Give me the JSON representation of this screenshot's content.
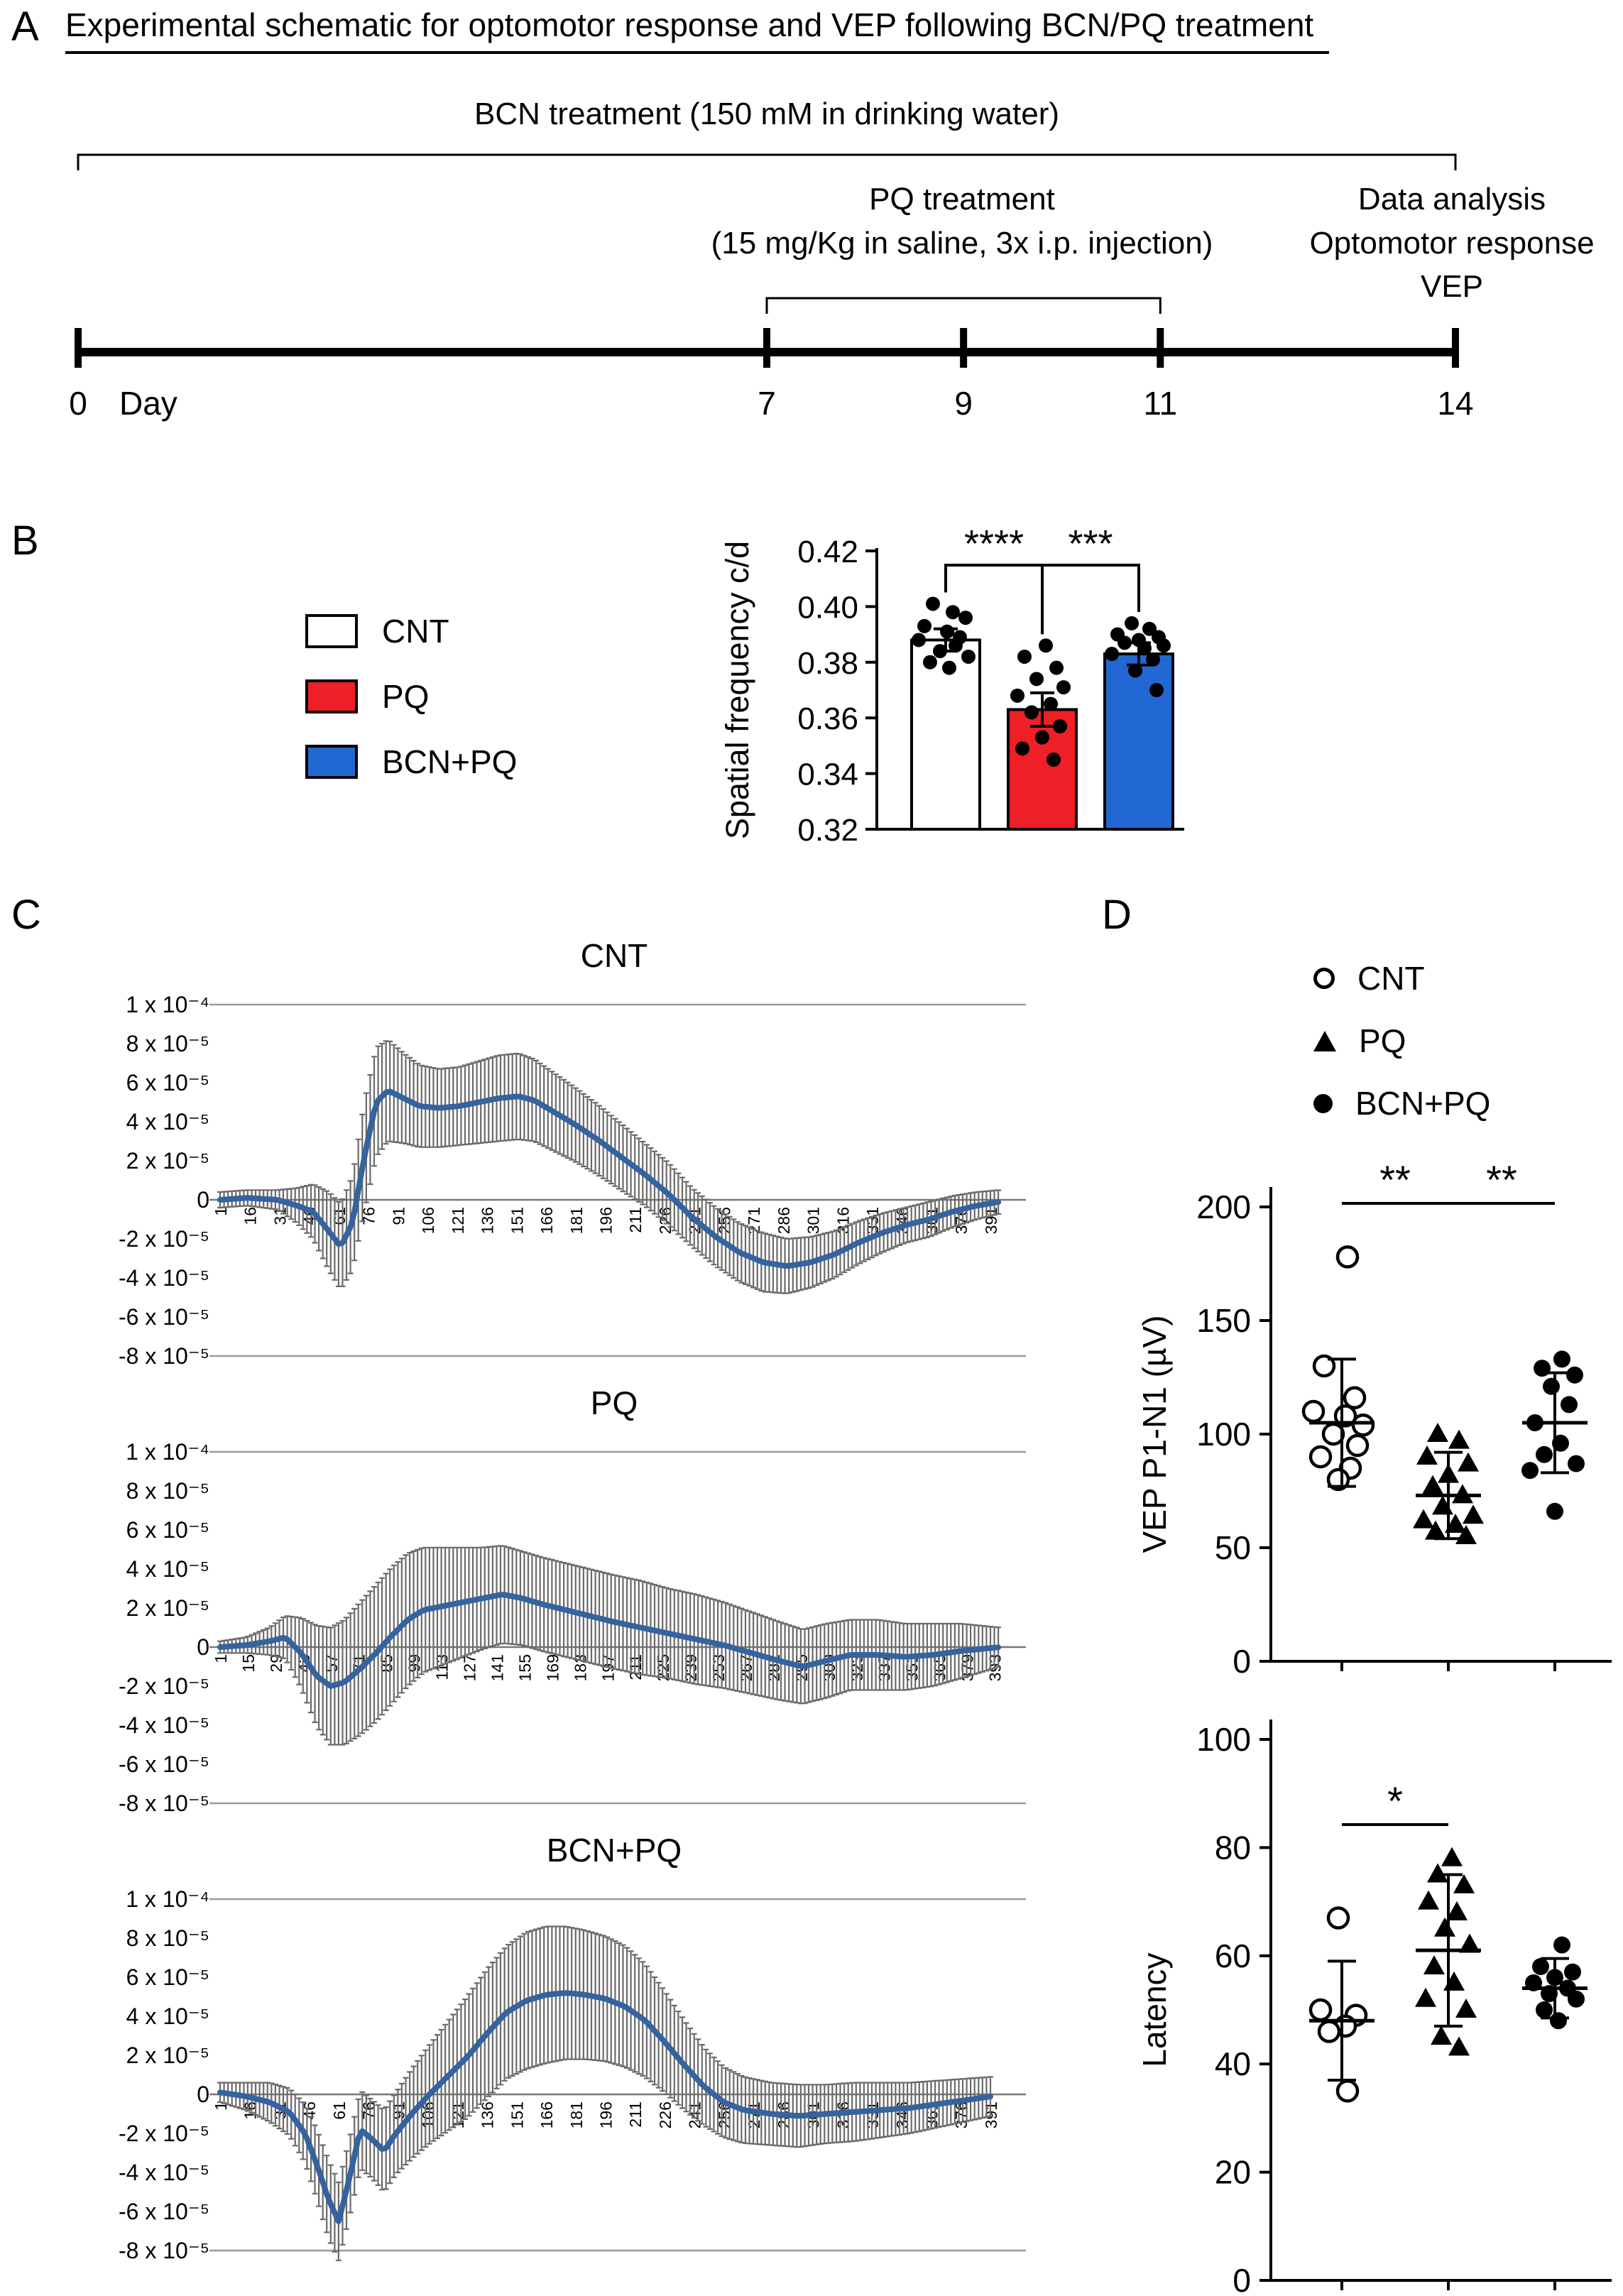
{
  "panel_a": {
    "label": "A",
    "title": "Experimental schematic for optomotor response and VEP following BCN/PQ treatment",
    "bcn_bracket_label": "BCN treatment (150 mM in drinking water)",
    "pq_bracket_label_line1": "PQ treatment",
    "pq_bracket_label_line2": "(15 mg/Kg in saline, 3x i.p. injection)",
    "analysis_label_line1": "Data analysis",
    "analysis_label_line2": "Optomotor response",
    "analysis_label_line3": "VEP",
    "timeline": {
      "day_axis_label": "Day",
      "day_ticks": [
        "0",
        "7",
        "9",
        "11",
        "14"
      ],
      "day_values": [
        0,
        7,
        9,
        11,
        14
      ],
      "start_day": 0,
      "end_day": 14,
      "pq_start_day": 7,
      "pq_end_day": 11
    }
  },
  "panel_b": {
    "label": "B",
    "legend": [
      {
        "label": "CNT",
        "color": "#ffffff"
      },
      {
        "label": "PQ",
        "color": "#ee1f26"
      },
      {
        "label": "BCN+PQ",
        "color": "#2268d3"
      }
    ]
  },
  "panel_c": {
    "label": "C"
  },
  "panel_d": {
    "label": "D",
    "legend": [
      {
        "label": "CNT",
        "marker": "open-circle"
      },
      {
        "label": "PQ",
        "marker": "filled-triangle"
      },
      {
        "label": "BCN+PQ",
        "marker": "filled-circle"
      }
    ]
  },
  "chart_data": [
    {
      "id": "spatial-frequency-bar",
      "type": "bar",
      "ylabel": "Spatial frequency c/d",
      "ylim": [
        0.32,
        0.42
      ],
      "yticks": [
        0.32,
        0.34,
        0.36,
        0.38,
        0.4,
        0.42
      ],
      "categories": [
        "CNT",
        "PQ",
        "BCN+PQ"
      ],
      "values": [
        0.388,
        0.363,
        0.383
      ],
      "errors": [
        0.004,
        0.006,
        0.004
      ],
      "bar_colors": [
        "#ffffff",
        "#ee1f26",
        "#2268d3"
      ],
      "points": [
        [
          0.401,
          0.398,
          0.396,
          0.393,
          0.391,
          0.389,
          0.388,
          0.386,
          0.384,
          0.382,
          0.38,
          0.378
        ],
        [
          0.386,
          0.382,
          0.378,
          0.374,
          0.371,
          0.368,
          0.365,
          0.362,
          0.357,
          0.353,
          0.349,
          0.345
        ],
        [
          0.394,
          0.392,
          0.39,
          0.389,
          0.388,
          0.387,
          0.386,
          0.385,
          0.383,
          0.381,
          0.377,
          0.37
        ]
      ],
      "point_jitter": [
        [
          -18,
          10,
          28,
          -30,
          2,
          20,
          -38,
          14,
          -8,
          32,
          -22,
          5
        ],
        [
          5,
          -25,
          20,
          -8,
          30,
          -35,
          12,
          -15,
          25,
          0,
          -28,
          16
        ],
        [
          -10,
          15,
          -30,
          28,
          0,
          -20,
          35,
          8,
          -38,
          20,
          -5,
          25
        ]
      ],
      "significance": [
        {
          "from": 0,
          "to": 1,
          "label": "****"
        },
        {
          "from": 1,
          "to": 2,
          "label": "***"
        }
      ]
    },
    {
      "id": "vep-trace-cnt",
      "type": "line",
      "title": "CNT",
      "line_color": "#35639f",
      "error_color": "#6a6a6a",
      "grid_color": "#9a9a9a",
      "y_unit": "1e-5 V",
      "ytick_values": [
        10,
        8,
        6,
        4,
        2,
        0,
        -2,
        -4,
        -6,
        -8
      ],
      "ytick_labels": [
        "1 x 10⁻⁴",
        "8 x 10⁻⁵",
        "6 x 10⁻⁵",
        "4 x 10⁻⁵",
        "2 x 10⁻⁵",
        "0",
        "-2 x 10⁻⁵",
        "-4 x 10⁻⁵",
        "-6 x 10⁻⁵",
        "-8 x 10⁻⁵"
      ],
      "xticks": [
        1,
        16,
        31,
        46,
        61,
        76,
        91,
        106,
        121,
        136,
        151,
        166,
        181,
        196,
        211,
        226,
        241,
        256,
        271,
        286,
        301,
        316,
        331,
        346,
        361,
        376,
        391
      ],
      "series": [
        [
          1,
          0,
          0.4
        ],
        [
          15,
          0.1,
          0.4
        ],
        [
          30,
          0,
          0.5
        ],
        [
          40,
          -0.3,
          0.9
        ],
        [
          48,
          -0.6,
          1.4
        ],
        [
          56,
          -1.6,
          2.0
        ],
        [
          62,
          -2.4,
          2.2
        ],
        [
          68,
          -1.2,
          2.4
        ],
        [
          74,
          2.2,
          2.8
        ],
        [
          80,
          5.0,
          2.8
        ],
        [
          86,
          5.6,
          2.6
        ],
        [
          94,
          5.2,
          2.3
        ],
        [
          102,
          4.8,
          2.1
        ],
        [
          112,
          4.7,
          2.0
        ],
        [
          122,
          4.8,
          2.0
        ],
        [
          132,
          5.0,
          2.1
        ],
        [
          142,
          5.2,
          2.2
        ],
        [
          152,
          5.3,
          2.2
        ],
        [
          160,
          5.1,
          2.1
        ],
        [
          170,
          4.5,
          2.0
        ],
        [
          180,
          3.9,
          1.9
        ],
        [
          192,
          3.1,
          1.8
        ],
        [
          204,
          2.2,
          1.7
        ],
        [
          216,
          1.3,
          1.6
        ],
        [
          228,
          0.3,
          1.6
        ],
        [
          240,
          -0.9,
          1.5
        ],
        [
          252,
          -1.9,
          1.5
        ],
        [
          264,
          -2.7,
          1.5
        ],
        [
          276,
          -3.2,
          1.5
        ],
        [
          288,
          -3.4,
          1.4
        ],
        [
          300,
          -3.2,
          1.3
        ],
        [
          312,
          -2.8,
          1.2
        ],
        [
          324,
          -2.2,
          1.1
        ],
        [
          336,
          -1.7,
          1.0
        ],
        [
          348,
          -1.3,
          0.9
        ],
        [
          360,
          -1.0,
          0.9
        ],
        [
          372,
          -0.6,
          0.8
        ],
        [
          384,
          -0.3,
          0.7
        ],
        [
          396,
          -0.1,
          0.6
        ]
      ]
    },
    {
      "id": "vep-trace-pq",
      "type": "line",
      "title": "PQ",
      "line_color": "#35639f",
      "error_color": "#6a6a6a",
      "grid_color": "#9a9a9a",
      "y_unit": "1e-5 V",
      "ytick_values": [
        10,
        8,
        6,
        4,
        2,
        0,
        -2,
        -4,
        -6,
        -8
      ],
      "ytick_labels": [
        "1 x 10⁻⁴",
        "8 x 10⁻⁵",
        "6 x 10⁻⁵",
        "4 x 10⁻⁵",
        "2 x 10⁻⁵",
        "0",
        "-2 x 10⁻⁵",
        "-4 x 10⁻⁵",
        "-6 x 10⁻⁵",
        "-8 x 10⁻⁵"
      ],
      "xticks": [
        1,
        15,
        29,
        43,
        57,
        71,
        85,
        99,
        113,
        127,
        141,
        155,
        169,
        183,
        197,
        211,
        225,
        239,
        253,
        267,
        281,
        295,
        309,
        323,
        337,
        351,
        365,
        379,
        393
      ],
      "series": [
        [
          1,
          0,
          0.3
        ],
        [
          14,
          0.1,
          0.4
        ],
        [
          26,
          0.3,
          0.7
        ],
        [
          34,
          0.5,
          1.1
        ],
        [
          42,
          -0.3,
          1.8
        ],
        [
          50,
          -1.5,
          2.6
        ],
        [
          57,
          -2.0,
          3.0
        ],
        [
          64,
          -1.8,
          3.2
        ],
        [
          72,
          -1.1,
          3.4
        ],
        [
          80,
          -0.3,
          3.5
        ],
        [
          88,
          0.6,
          3.5
        ],
        [
          96,
          1.4,
          3.4
        ],
        [
          104,
          1.9,
          3.2
        ],
        [
          114,
          2.1,
          3.0
        ],
        [
          124,
          2.3,
          2.8
        ],
        [
          134,
          2.5,
          2.6
        ],
        [
          144,
          2.7,
          2.5
        ],
        [
          154,
          2.5,
          2.4
        ],
        [
          164,
          2.2,
          2.4
        ],
        [
          176,
          1.9,
          2.4
        ],
        [
          188,
          1.6,
          2.4
        ],
        [
          200,
          1.3,
          2.4
        ],
        [
          214,
          1.0,
          2.4
        ],
        [
          228,
          0.7,
          2.3
        ],
        [
          242,
          0.4,
          2.3
        ],
        [
          256,
          0.1,
          2.2
        ],
        [
          270,
          -0.3,
          2.1
        ],
        [
          284,
          -0.7,
          2.0
        ],
        [
          296,
          -1.0,
          1.9
        ],
        [
          308,
          -0.7,
          1.9
        ],
        [
          320,
          -0.4,
          1.8
        ],
        [
          334,
          -0.4,
          1.8
        ],
        [
          348,
          -0.5,
          1.7
        ],
        [
          362,
          -0.4,
          1.6
        ],
        [
          376,
          -0.2,
          1.4
        ],
        [
          386,
          -0.1,
          1.2
        ],
        [
          396,
          0,
          1.0
        ]
      ]
    },
    {
      "id": "vep-trace-bcnpq",
      "type": "line",
      "title": "BCN+PQ",
      "line_color": "#35639f",
      "error_color": "#6a6a6a",
      "grid_color": "#9a9a9a",
      "y_unit": "1e-5 V",
      "ytick_values": [
        10,
        8,
        6,
        4,
        2,
        0,
        -2,
        -4,
        -6,
        -8
      ],
      "ytick_labels": [
        "1 x 10⁻⁴",
        "8 x 10⁻⁵",
        "6 x 10⁻⁵",
        "4 x 10⁻⁵",
        "2 x 10⁻⁵",
        "0",
        "-2 x 10⁻⁵",
        "-4 x 10⁻⁵",
        "-6 x 10⁻⁵",
        "-8 x 10⁻⁵"
      ],
      "xticks": [
        1,
        16,
        31,
        46,
        61,
        76,
        91,
        106,
        121,
        136,
        151,
        166,
        181,
        196,
        211,
        226,
        241,
        256,
        271,
        286,
        301,
        316,
        331,
        346,
        361,
        376,
        391
      ],
      "series": [
        [
          1,
          0.1,
          0.5
        ],
        [
          14,
          -0.1,
          0.7
        ],
        [
          26,
          -0.4,
          1.0
        ],
        [
          36,
          -0.9,
          1.2
        ],
        [
          44,
          -2.0,
          1.5
        ],
        [
          50,
          -3.6,
          1.8
        ],
        [
          56,
          -5.4,
          2.0
        ],
        [
          61,
          -6.5,
          2.0
        ],
        [
          66,
          -4.5,
          2.0
        ],
        [
          72,
          -1.8,
          2.0
        ],
        [
          78,
          -2.3,
          2.0
        ],
        [
          84,
          -2.9,
          2.1
        ],
        [
          90,
          -2.0,
          2.1
        ],
        [
          98,
          -1.0,
          2.3
        ],
        [
          106,
          -0.1,
          2.5
        ],
        [
          116,
          0.9,
          2.8
        ],
        [
          126,
          1.9,
          3.1
        ],
        [
          136,
          3.1,
          3.3
        ],
        [
          146,
          4.2,
          3.4
        ],
        [
          156,
          4.8,
          3.5
        ],
        [
          166,
          5.1,
          3.5
        ],
        [
          176,
          5.2,
          3.4
        ],
        [
          186,
          5.1,
          3.3
        ],
        [
          196,
          4.9,
          3.2
        ],
        [
          206,
          4.5,
          3.1
        ],
        [
          216,
          3.8,
          2.9
        ],
        [
          226,
          2.7,
          2.6
        ],
        [
          236,
          1.5,
          2.3
        ],
        [
          246,
          0.4,
          2.0
        ],
        [
          256,
          -0.4,
          1.8
        ],
        [
          266,
          -0.8,
          1.7
        ],
        [
          280,
          -1.0,
          1.6
        ],
        [
          294,
          -1.1,
          1.6
        ],
        [
          308,
          -1.0,
          1.5
        ],
        [
          322,
          -0.9,
          1.5
        ],
        [
          336,
          -0.8,
          1.4
        ],
        [
          350,
          -0.7,
          1.3
        ],
        [
          364,
          -0.5,
          1.2
        ],
        [
          378,
          -0.3,
          1.1
        ],
        [
          392,
          -0.1,
          1.0
        ]
      ]
    },
    {
      "id": "vep-amplitude",
      "type": "scatter",
      "ylabel": "VEP P1-N1 (µV)",
      "ylim": [
        0,
        200
      ],
      "yticks": [
        0,
        50,
        100,
        150,
        200
      ],
      "groups": [
        {
          "name": "CNT",
          "marker": "open-circle",
          "mean": 105,
          "sd": 28,
          "points": [
            [
              8,
              178
            ],
            [
              -25,
              130
            ],
            [
              18,
              116
            ],
            [
              -40,
              110
            ],
            [
              5,
              108
            ],
            [
              30,
              104
            ],
            [
              -12,
              100
            ],
            [
              22,
              95
            ],
            [
              -30,
              90
            ],
            [
              12,
              85
            ],
            [
              -5,
              80
            ]
          ]
        },
        {
          "name": "PQ",
          "marker": "filled-triangle",
          "mean": 73,
          "sd": 19,
          "points": [
            [
              -15,
              100
            ],
            [
              15,
              97
            ],
            [
              -30,
              90
            ],
            [
              28,
              87
            ],
            [
              0,
              82
            ],
            [
              -22,
              77
            ],
            [
              20,
              73
            ],
            [
              -8,
              68
            ],
            [
              35,
              64
            ],
            [
              -35,
              62
            ],
            [
              10,
              60
            ],
            [
              -18,
              57
            ],
            [
              25,
              55
            ]
          ]
        },
        {
          "name": "BCN+PQ",
          "marker": "filled-circle",
          "mean": 105,
          "sd": 22,
          "points": [
            [
              10,
              133
            ],
            [
              -18,
              129
            ],
            [
              28,
              126
            ],
            [
              -5,
              121
            ],
            [
              20,
              113
            ],
            [
              -28,
              105
            ],
            [
              8,
              96
            ],
            [
              -15,
              91
            ],
            [
              30,
              87
            ],
            [
              -35,
              84
            ],
            [
              0,
              66
            ]
          ]
        }
      ],
      "significance": [
        {
          "from": 0,
          "to": 1,
          "label": "**"
        },
        {
          "from": 1,
          "to": 2,
          "label": "**"
        }
      ]
    },
    {
      "id": "vep-latency",
      "type": "scatter",
      "ylabel": "Latency",
      "ylim": [
        0,
        100
      ],
      "yticks": [
        0,
        20,
        40,
        60,
        80,
        100
      ],
      "groups": [
        {
          "name": "CNT",
          "marker": "open-circle",
          "mean": 48,
          "sd": 11,
          "points": [
            [
              -5,
              67
            ],
            [
              -30,
              50
            ],
            [
              20,
              49
            ],
            [
              5,
              47
            ],
            [
              -18,
              46
            ],
            [
              8,
              35
            ]
          ]
        },
        {
          "name": "PQ",
          "marker": "filled-triangle",
          "mean": 61,
          "sd": 14,
          "points": [
            [
              5,
              78
            ],
            [
              -15,
              75
            ],
            [
              22,
              73
            ],
            [
              -28,
              70
            ],
            [
              12,
              68
            ],
            [
              -5,
              65
            ],
            [
              30,
              62
            ],
            [
              -20,
              58
            ],
            [
              8,
              55
            ],
            [
              -32,
              52
            ],
            [
              25,
              50
            ],
            [
              -10,
              45
            ],
            [
              15,
              43
            ]
          ]
        },
        {
          "name": "BCN+PQ",
          "marker": "filled-circle",
          "mean": 54,
          "sd": 5.5,
          "points": [
            [
              10,
              62
            ],
            [
              -20,
              58
            ],
            [
              25,
              57
            ],
            [
              0,
              56
            ],
            [
              -30,
              55
            ],
            [
              18,
              54
            ],
            [
              -8,
              53
            ],
            [
              30,
              52
            ],
            [
              -15,
              50
            ],
            [
              5,
              48
            ]
          ]
        }
      ],
      "significance": [
        {
          "from": 0,
          "to": 1,
          "label": "*"
        }
      ]
    }
  ]
}
